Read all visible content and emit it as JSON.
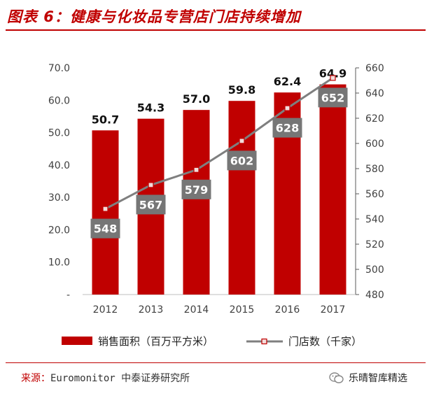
{
  "title": "图表 6：健康与化妆品专营店门店持续增加",
  "source": {
    "label": "来源：",
    "text": "Euromonitor 中泰证券研究所"
  },
  "watermark": {
    "text": "乐晴智库精选",
    "icon": "wechat-icon"
  },
  "colors": {
    "bar": "#c00000",
    "line": "#7f7f7f",
    "marker": "#c00000",
    "label_box": "#767676",
    "accent": "#c00000"
  },
  "chart_data": {
    "type": "bar",
    "categories": [
      "2012",
      "2013",
      "2014",
      "2015",
      "2016",
      "2017"
    ],
    "series": [
      {
        "name": "销售面积（百万平方米）",
        "type": "bar",
        "axis": "left",
        "values": [
          50.7,
          54.3,
          57.0,
          59.8,
          62.4,
          64.9
        ],
        "labels": [
          "50.7",
          "54.3",
          "57.0",
          "59.8",
          "62.4",
          "64.9"
        ]
      },
      {
        "name": "门店数（千家）",
        "type": "line",
        "axis": "right",
        "values": [
          548,
          567,
          579,
          602,
          628,
          652
        ],
        "labels": [
          "548",
          "567",
          "579",
          "602",
          "628",
          "652"
        ]
      }
    ],
    "y_left": {
      "ticks": [
        "-",
        "10.0",
        "20.0",
        "30.0",
        "40.0",
        "50.0",
        "60.0",
        "70.0"
      ],
      "range": [
        0,
        70
      ]
    },
    "y_right": {
      "ticks": [
        "480",
        "500",
        "520",
        "540",
        "560",
        "580",
        "600",
        "620",
        "640",
        "660"
      ],
      "range": [
        480,
        660
      ]
    },
    "grid": false,
    "legend_position": "bottom"
  }
}
